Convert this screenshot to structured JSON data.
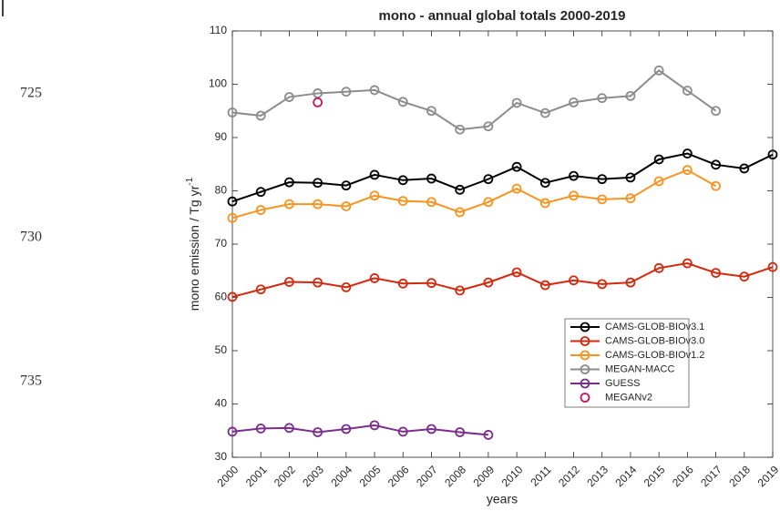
{
  "line_numbers": [
    "725",
    "730",
    "735"
  ],
  "chart_data": {
    "type": "line",
    "title": "mono - annual global totals 2000-2019",
    "x_label": "years",
    "y_label": "mono emission / Tg yr",
    "y_label_sup": "-1",
    "x": [
      2000,
      2001,
      2002,
      2003,
      2004,
      2005,
      2006,
      2007,
      2008,
      2009,
      2010,
      2011,
      2012,
      2013,
      2014,
      2015,
      2016,
      2017,
      2018,
      2019
    ],
    "xlim": [
      2000,
      2019
    ],
    "xticks": [
      2000,
      2001,
      2002,
      2003,
      2004,
      2005,
      2006,
      2007,
      2008,
      2009,
      2010,
      2011,
      2012,
      2013,
      2014,
      2015,
      2016,
      2017,
      2018,
      2019
    ],
    "ylim": [
      30,
      110
    ],
    "yticks": [
      30,
      40,
      50,
      60,
      70,
      80,
      90,
      100,
      110
    ],
    "legend": "lower right",
    "series": [
      {
        "name": "CAMS-GLOB-BIOv3.1",
        "color": "#000000",
        "values": [
          78.0,
          79.8,
          81.6,
          81.5,
          81.0,
          83.0,
          82.0,
          82.3,
          80.2,
          82.2,
          84.5,
          81.5,
          82.8,
          82.2,
          82.5,
          85.9,
          87.0,
          84.9,
          84.2,
          86.8
        ]
      },
      {
        "name": "CAMS-GLOB-BIOv3.0",
        "color": "#d4290e",
        "values": [
          60.1,
          61.5,
          62.9,
          62.8,
          61.9,
          63.6,
          62.6,
          62.7,
          61.3,
          62.8,
          64.7,
          62.3,
          63.2,
          62.5,
          62.8,
          65.5,
          66.4,
          64.6,
          63.9,
          65.7
        ]
      },
      {
        "name": "CAMS-GLOB-BIOv1.2",
        "color": "#f7931e",
        "values": [
          74.9,
          76.4,
          77.5,
          77.5,
          77.1,
          79.1,
          78.1,
          77.9,
          76.0,
          77.9,
          80.4,
          77.7,
          79.1,
          78.4,
          78.6,
          81.8,
          83.9,
          80.9,
          null,
          null
        ]
      },
      {
        "name": "MEGAN-MACC",
        "color": "#8c8c8c",
        "values": [
          94.7,
          94.1,
          97.6,
          98.3,
          98.6,
          98.9,
          96.7,
          95.0,
          91.5,
          92.1,
          96.5,
          94.6,
          96.6,
          97.4,
          97.8,
          102.6,
          98.8,
          95.0,
          null,
          null
        ]
      },
      {
        "name": "GUESS",
        "color": "#7b2d8e",
        "values": [
          34.8,
          35.4,
          35.5,
          34.7,
          35.3,
          36.0,
          34.8,
          35.3,
          34.7,
          34.2,
          null,
          null,
          null,
          null,
          null,
          null,
          null,
          null,
          null,
          null
        ]
      },
      {
        "name": "MEGANv2",
        "color": "#c2185b",
        "linestyle": "none",
        "values": [
          null,
          null,
          null,
          96.6,
          null,
          null,
          null,
          null,
          null,
          null,
          null,
          null,
          null,
          null,
          null,
          null,
          null,
          null,
          null,
          null
        ]
      }
    ]
  }
}
